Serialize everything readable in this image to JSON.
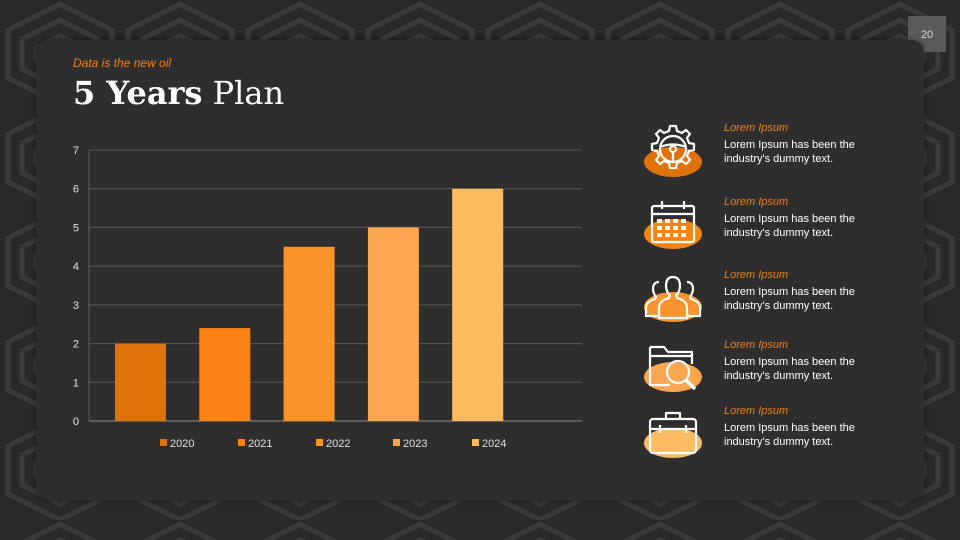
{
  "slide": {
    "number": "20",
    "subtitle": "Data is the new oil",
    "title_bold": "5 Years",
    "title_light": "Plan"
  },
  "colors": {
    "accent": "#f07f12",
    "series": [
      "#e0720a",
      "#fb8313",
      "#fb9428",
      "#fca650",
      "#fdbb60"
    ],
    "icon_fills": [
      "#e0720a",
      "#f58413",
      "#fa9430",
      "#fca651",
      "#fdbb62"
    ]
  },
  "chart_data": {
    "type": "bar",
    "categories": [
      "2020",
      "2021",
      "2022",
      "2023",
      "2024"
    ],
    "values": [
      2,
      2.4,
      4.5,
      5,
      6
    ],
    "ylim": [
      0,
      7
    ],
    "yticks": [
      0,
      1,
      2,
      3,
      4,
      5,
      6,
      7
    ],
    "grid": true,
    "legend": "bottom",
    "legend_entries": [
      "2020",
      "2021",
      "2022",
      "2023",
      "2024"
    ]
  },
  "items": [
    {
      "icon": "gear-steering-icon",
      "label": "Lorem Ipsum",
      "text": "Lorem Ipsum has been the industry's dummy text."
    },
    {
      "icon": "calendar-icon",
      "label": "Lorem Ipsum",
      "text": "Lorem Ipsum has been the industry's dummy text."
    },
    {
      "icon": "people-group-icon",
      "label": "Lorem Ipsum",
      "text": "Lorem Ipsum has been the industry's dummy text."
    },
    {
      "icon": "folder-search-icon",
      "label": "Lorem Ipsum",
      "text": "Lorem Ipsum has been the industry's dummy text."
    },
    {
      "icon": "briefcase-icon",
      "label": "Lorem Ipsum",
      "text": "Lorem Ipsum has been the industry's dummy text."
    }
  ]
}
